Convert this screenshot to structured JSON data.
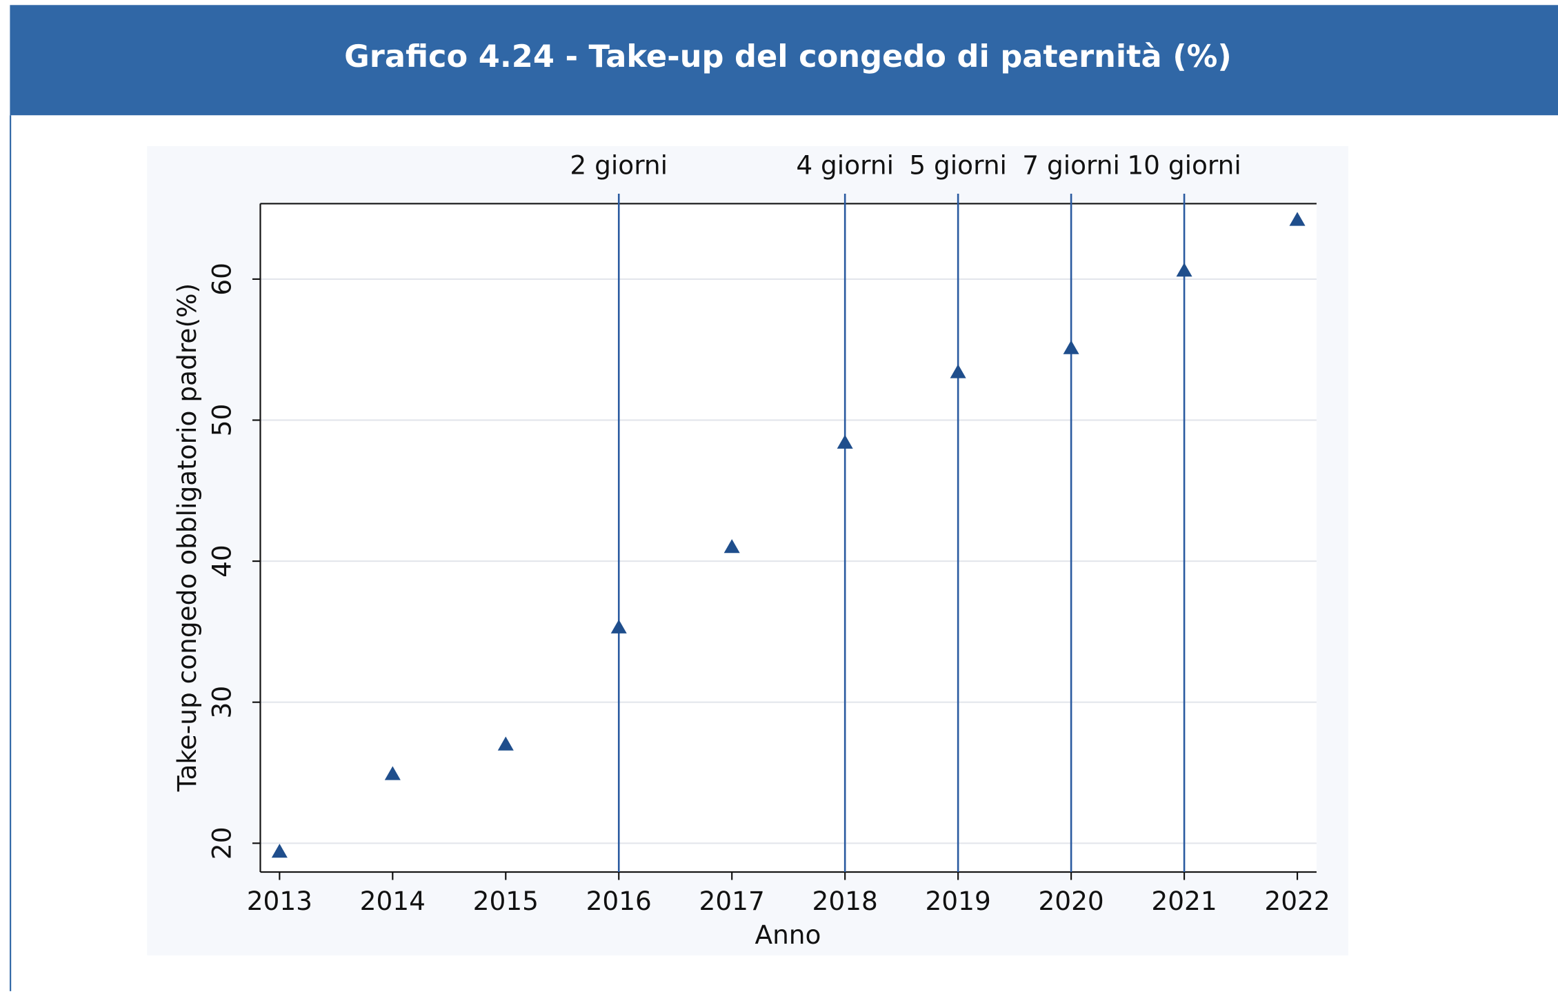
{
  "chart_data": {
    "type": "scatter",
    "title": "Grafico 4.24 - Take-up del congedo di paternità (%)",
    "x_label": "Anno",
    "y_label": "Take-up congedo obbligatorio padre(%)",
    "x": [
      2013,
      2014,
      2015,
      2016,
      2017,
      2018,
      2019,
      2020,
      2021,
      2022
    ],
    "values": [
      19.4,
      24.9,
      27.0,
      35.3,
      41.0,
      48.4,
      53.4,
      55.1,
      60.6,
      64.2
    ],
    "color": "#1f4e8c",
    "xlim": [
      2012.83,
      2022.17
    ],
    "xticks": [
      2013,
      2014,
      2015,
      2016,
      2017,
      2018,
      2019,
      2020,
      2021,
      2022
    ],
    "ylim": [
      17.96,
      65.35
    ],
    "yticks": [
      20,
      30,
      40,
      50,
      60
    ],
    "grid": true,
    "annotations": [
      {
        "x": 2016,
        "label": "2 giorni"
      },
      {
        "x": 2018,
        "label": "4 giorni"
      },
      {
        "x": 2019,
        "label": "5 giorni"
      },
      {
        "x": 2020,
        "label": "7 giorni"
      },
      {
        "x": 2021,
        "label": "10 giorni"
      }
    ]
  }
}
